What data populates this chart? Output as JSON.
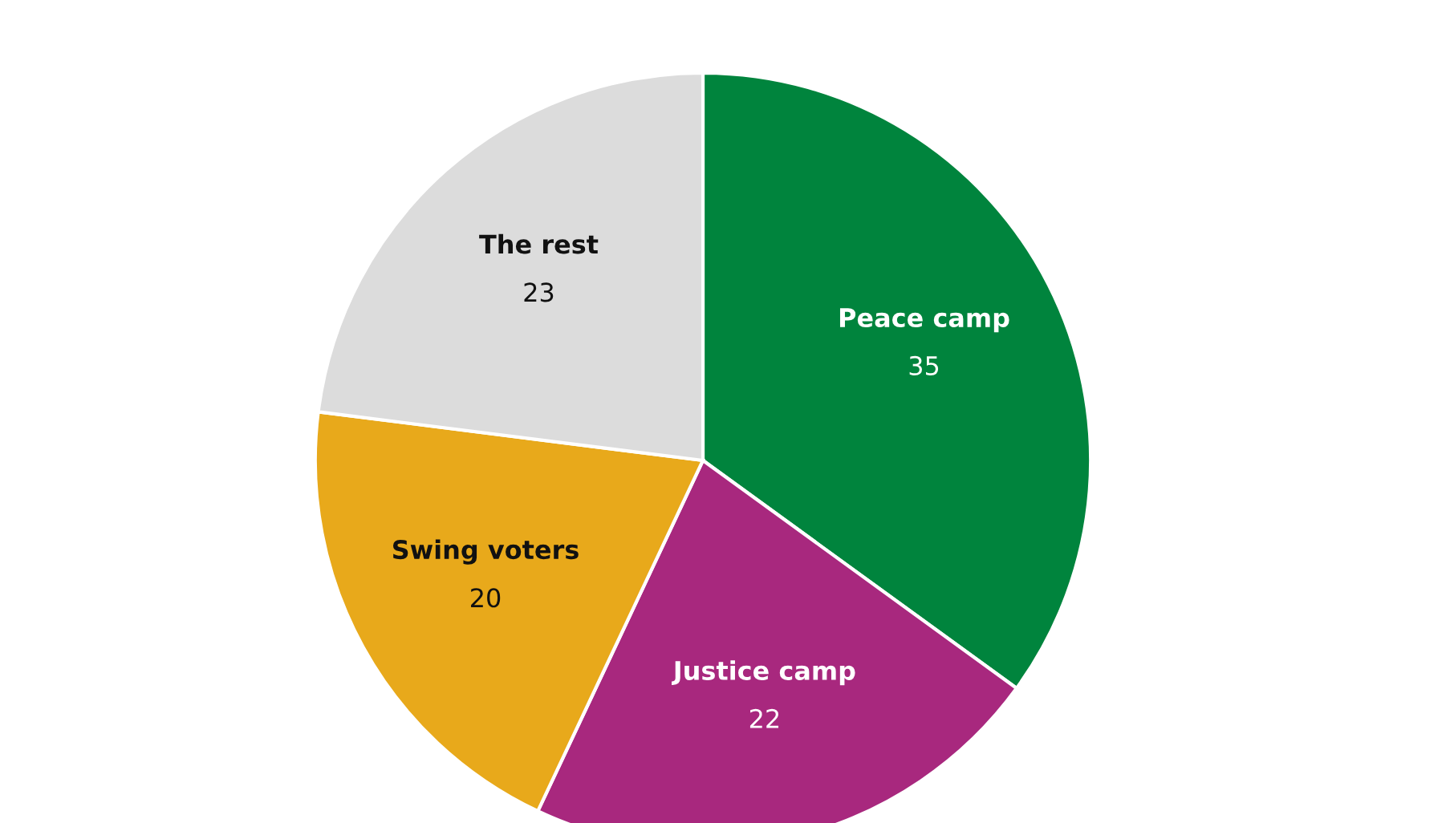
{
  "chart_data": {
    "type": "pie",
    "categories": [
      "Peace camp",
      "Justice camp",
      "Swing voters",
      "The rest"
    ],
    "values": [
      35,
      22,
      20,
      23
    ],
    "colors": [
      "#00843d",
      "#a8287e",
      "#e8a91b",
      "#dcdcdc"
    ],
    "data_labels": true
  }
}
